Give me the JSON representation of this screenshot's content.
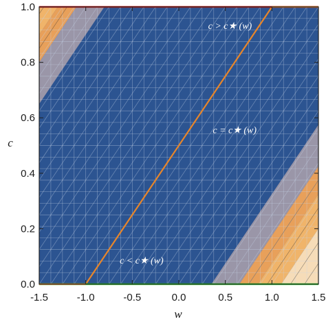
{
  "chart_data": {
    "type": "area",
    "title": "",
    "xlabel": "w",
    "ylabel": "c",
    "xlim": [
      -1.5,
      1.5
    ],
    "ylim": [
      0.0,
      1.0
    ],
    "xticks": [
      -1.5,
      -1.0,
      -0.5,
      0.0,
      0.5,
      1.0,
      1.5
    ],
    "xtick_labels": [
      "-1.5",
      "-1.0",
      "-0.5",
      "0.0",
      "0.5",
      "1.0",
      "1.5"
    ],
    "yticks": [
      0.0,
      0.2,
      0.4,
      0.6,
      0.8,
      1.0
    ],
    "ytick_labels": [
      "0.0",
      "0.2",
      "0.4",
      "0.6",
      "0.8",
      "1.0"
    ],
    "grid": false,
    "legend": "none",
    "regions": [
      {
        "role": "upper-left-band",
        "colors": [
          "#f6dcb8",
          "#f0b46a",
          "#e8a05a",
          "#9a96a8"
        ]
      },
      {
        "role": "main",
        "color": "#2c5491"
      },
      {
        "role": "lower-right-band",
        "colors": [
          "#9a96a8",
          "#e8a05a",
          "#f0b46a",
          "#f6dcb8"
        ]
      }
    ],
    "series": [
      {
        "color": "#e8862a",
        "x": [
          -1.0,
          1.0
        ],
        "y": [
          0.0,
          1.0
        ]
      },
      {
        "color": "#d62020",
        "x": [
          -1.5,
          1.5
        ],
        "y": [
          1.0,
          1.0
        ]
      },
      {
        "color": "#2ecc2e",
        "x": [
          -1.5,
          1.5
        ],
        "y": [
          0.0,
          0.0
        ]
      }
    ],
    "annotations": [
      {
        "text": "c > c★ (w)",
        "x": 0.55,
        "y": 0.92
      },
      {
        "text": "c = c★ (w)",
        "x": 0.6,
        "y": 0.545
      },
      {
        "text": "c < c★ (w)",
        "x": -0.4,
        "y": 0.075
      }
    ]
  }
}
